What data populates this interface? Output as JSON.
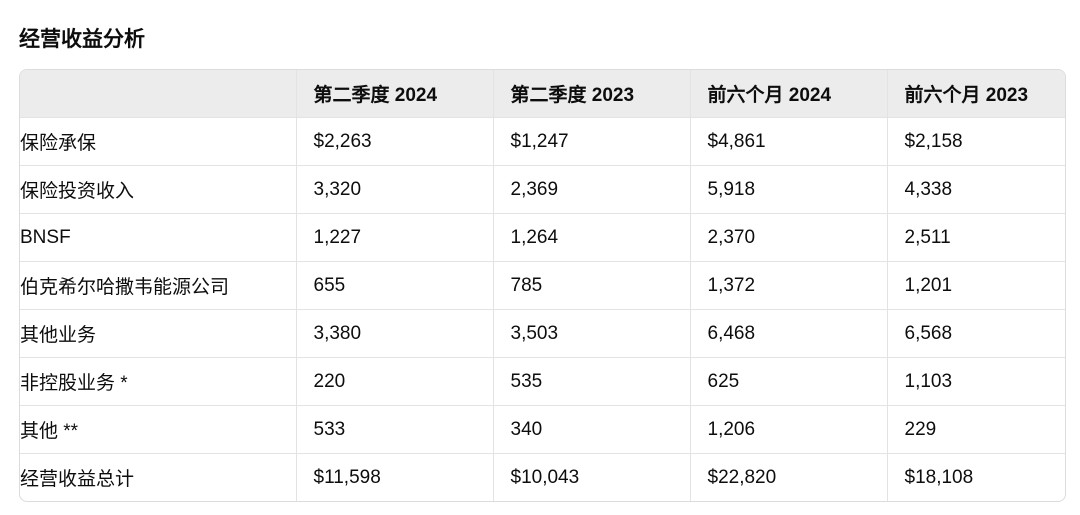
{
  "header": {
    "title": "经营收益分析"
  },
  "table": {
    "columns": [
      "",
      "第二季度 2024",
      "第二季度 2023",
      "前六个月 2024",
      "前六个月 2023"
    ],
    "rows": [
      [
        "保险承保",
        "$2,263",
        "$1,247",
        "$4,861",
        "$2,158"
      ],
      [
        "保险投资收入",
        "3,320",
        "2,369",
        "5,918",
        "4,338"
      ],
      [
        "BNSF",
        "1,227",
        "1,264",
        "2,370",
        "2,511"
      ],
      [
        "伯克希尔哈撒韦能源公司",
        "655",
        "785",
        "1,372",
        "1,201"
      ],
      [
        "其他业务",
        "3,380",
        "3,503",
        "6,468",
        "6,568"
      ],
      [
        "非控股业务 *",
        "220",
        "535",
        "625",
        "1,103"
      ],
      [
        "其他 **",
        "533",
        "340",
        "1,206",
        "229"
      ],
      [
        "经营收益总计",
        "$11,598",
        "$10,043",
        "$22,820",
        "$18,108"
      ]
    ]
  }
}
